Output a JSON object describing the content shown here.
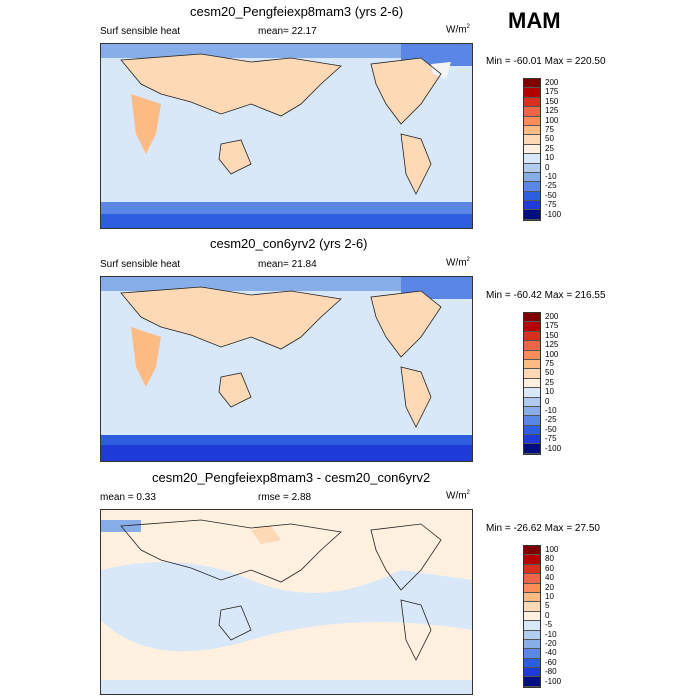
{
  "season": "MAM",
  "panels": [
    {
      "title": "cesm20_Pengfeiexp8mam3 (yrs 2-6)",
      "left_label": "Surf sensible heat",
      "center_label": "mean=  22.17",
      "units": "W/m",
      "units_sup": "2",
      "minmax": "Min = -60.01 Max = 220.50",
      "levels": [
        "200",
        "175",
        "150",
        "125",
        "100",
        "75",
        "50",
        "25",
        "10",
        "0",
        "-10",
        "-25",
        "-50",
        "-75",
        "-100"
      ]
    },
    {
      "title": "cesm20_con6yrv2 (yrs 2-6)",
      "left_label": "Surf sensible heat",
      "center_label": "mean=  21.84",
      "units": "W/m",
      "units_sup": "2",
      "minmax": "Min = -60.42 Max = 216.55",
      "levels": [
        "200",
        "175",
        "150",
        "125",
        "100",
        "75",
        "50",
        "25",
        "10",
        "0",
        "-10",
        "-25",
        "-50",
        "-75",
        "-100"
      ]
    },
    {
      "title": "cesm20_Pengfeiexp8mam3 - cesm20_con6yrv2",
      "left_label": "mean =   0.33",
      "center_label": "rmse =   2.88",
      "units": "W/m",
      "units_sup": "2",
      "minmax": "Min = -26.62 Max =  27.50",
      "levels": [
        "100",
        "80",
        "60",
        "40",
        "20",
        "10",
        "5",
        "0",
        "-5",
        "-10",
        "-20",
        "-40",
        "-60",
        "-80",
        "-100"
      ]
    }
  ],
  "colors": {
    "colorbar": [
      "#7f0000",
      "#b30000",
      "#d7301f",
      "#ef6548",
      "#fc8d59",
      "#fdbb84",
      "#fdd9b5",
      "#fff0e0",
      "#d8e8f8",
      "#b0cdf0",
      "#88aeea",
      "#5a86e6",
      "#2e5ee0",
      "#1e3ad8",
      "#000e80"
    ]
  }
}
